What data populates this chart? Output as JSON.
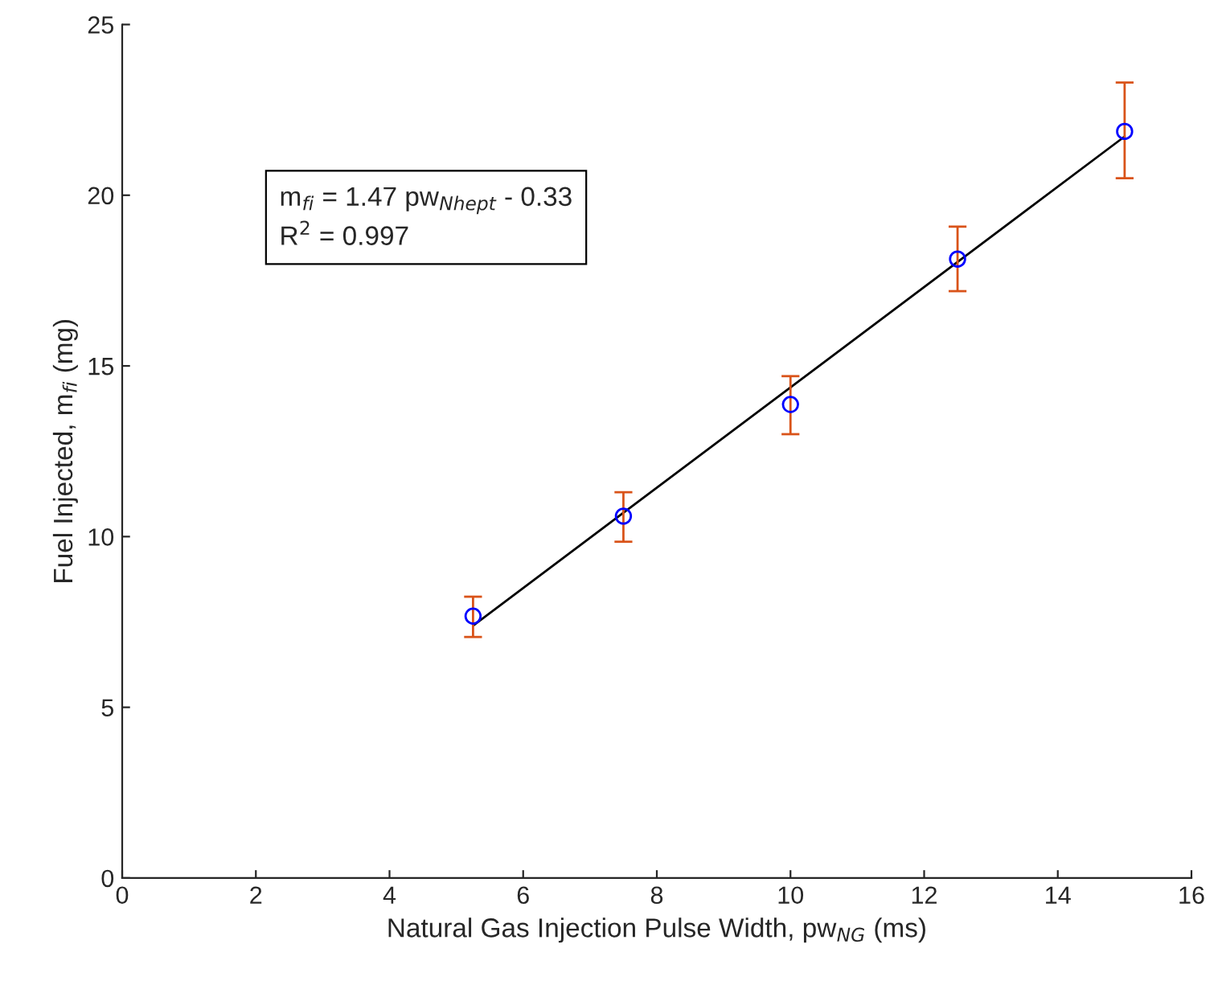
{
  "chart_data": {
    "type": "scatter",
    "xlabel": "Natural Gas Injection Pulse Width, pw$_{NG}$ (ms)",
    "ylabel": "Fuel Injected, m$_{fi}$ (mg)",
    "xlim": [
      0,
      16
    ],
    "xticks": [
      0,
      2,
      4,
      6,
      8,
      10,
      12,
      14,
      16
    ],
    "ylim": [
      0,
      25
    ],
    "yticks": [
      0,
      5,
      10,
      15,
      20,
      25
    ],
    "grid": false,
    "series": [
      {
        "color": "#0000ff",
        "marker": "circle",
        "x": [
          5.25,
          7.5,
          10,
          12.5,
          15
        ],
        "values": [
          7.67,
          10.6,
          13.87,
          18.13,
          21.87
        ],
        "errors": [
          [
            7.06,
            8.24
          ],
          [
            9.85,
            11.3
          ],
          [
            13.0,
            14.7
          ],
          [
            17.19,
            19.08
          ],
          [
            20.5,
            23.3
          ]
        ]
      },
      {
        "type": "line",
        "color": "#000000",
        "x": [
          5.25,
          15
        ],
        "values": [
          7.39,
          21.72
        ],
        "line_style": "solid"
      }
    ],
    "annotations": [
      "m$_{fi}$ = 1.47 pw$_{Nhept}$ - 0.33",
      "R$^{2}$ = 0.997"
    ]
  }
}
